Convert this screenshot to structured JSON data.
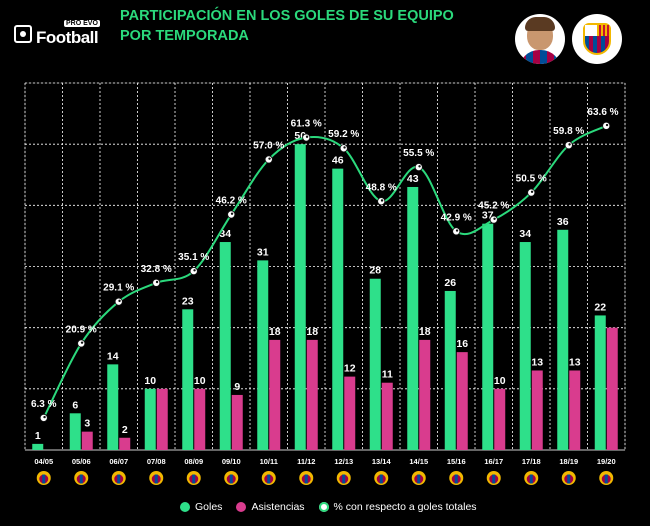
{
  "header": {
    "logo_small": "PRO EVO",
    "logo_word": "Football",
    "title": "PARTICIPACIÓN EN LOS GOLES DE SU EQUIPO POR TEMPORADA"
  },
  "colors": {
    "goles": "#2ee08a",
    "asistencias": "#d93c8e",
    "line": "#2bd97c",
    "title": "#2bd97c",
    "grid": "#ffffff",
    "background": "#000000"
  },
  "chart_data": {
    "type": "bar",
    "categories": [
      "04/05",
      "05/06",
      "06/07",
      "07/08",
      "08/09",
      "09/10",
      "10/11",
      "11/12",
      "12/13",
      "13/14",
      "14/15",
      "15/16",
      "16/17",
      "17/18",
      "18/19",
      "19/20"
    ],
    "series": [
      {
        "name": "Goles",
        "type": "bar",
        "values": [
          1,
          6,
          14,
          10,
          23,
          34,
          31,
          50,
          46,
          28,
          43,
          26,
          37,
          34,
          36,
          22
        ]
      },
      {
        "name": "Asistencias",
        "type": "bar",
        "values": [
          0,
          3,
          2,
          10,
          10,
          9,
          18,
          18,
          12,
          11,
          18,
          16,
          10,
          13,
          13,
          20
        ]
      },
      {
        "name": "% con respecto a goles totales",
        "type": "line",
        "values": [
          6.3,
          20.9,
          29.1,
          32.8,
          35.1,
          46.2,
          57.0,
          61.3,
          59.2,
          48.8,
          55.5,
          42.9,
          45.2,
          50.5,
          59.8,
          63.6
        ]
      }
    ],
    "bar_labels": {
      "goles": [
        "1",
        "6",
        "14",
        "10",
        "23",
        "34",
        "31",
        "50",
        "46",
        "28",
        "43",
        "26",
        "37",
        "34",
        "36",
        "22"
      ],
      "asistencias": [
        "",
        "3",
        "2",
        "",
        "10",
        "9",
        "18",
        "18",
        "12",
        "11",
        "18",
        "16",
        "10",
        "13",
        "13",
        ""
      ]
    },
    "line_labels": [
      "6.3 %",
      "20.9 %",
      "29.1 %",
      "32.8 %",
      "35.1 %",
      "46.2 %",
      "57.0 %",
      "61.3 %",
      "59.2 %",
      "48.8 %",
      "55.5 %",
      "42.9 %",
      "45.2 %",
      "50.5 %",
      "59.8 %",
      "63.6 %"
    ],
    "bar_ylim": [
      0,
      60
    ],
    "line_ylim": [
      0,
      72
    ],
    "grid": true,
    "legend_position": "bottom"
  },
  "legend": {
    "goles": "Goles",
    "asistencias": "Asistencias",
    "pct": "% con respecto a goles totales"
  }
}
